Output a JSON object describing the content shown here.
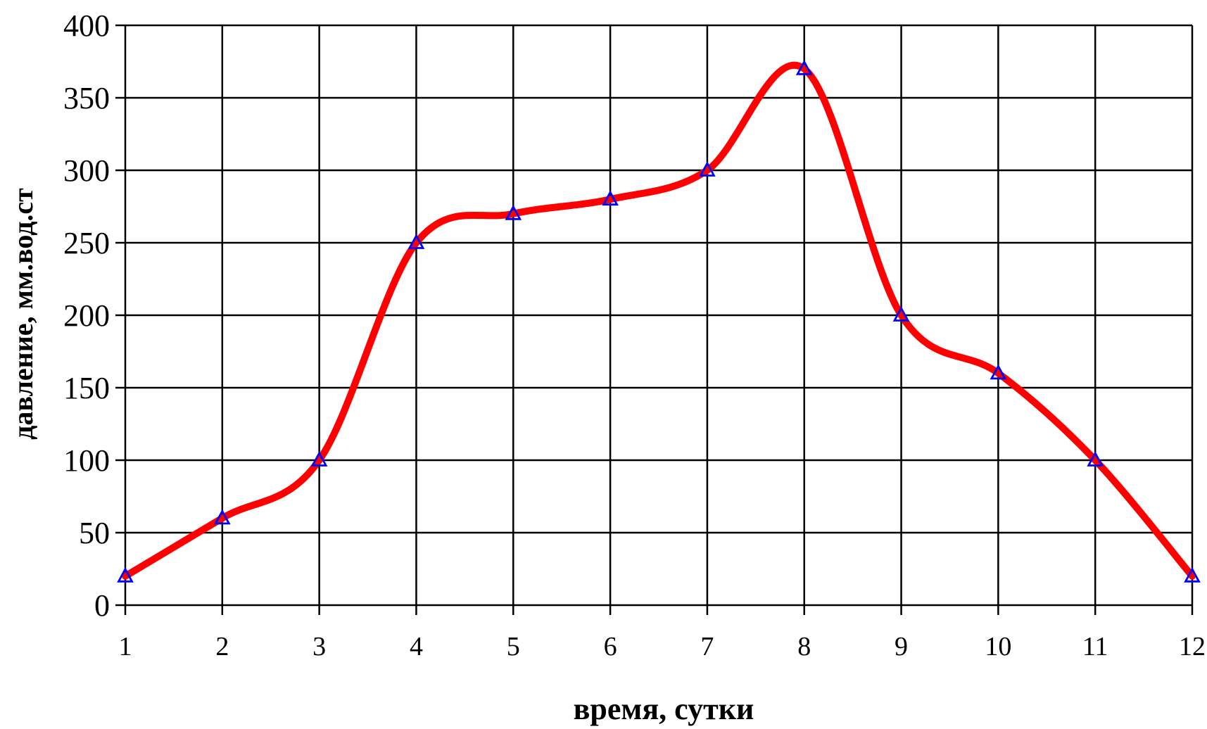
{
  "chart_data": {
    "type": "line",
    "title": "",
    "xlabel": "время, сутки",
    "ylabel": "давление, мм.вод.ст",
    "xlim": [
      1,
      12
    ],
    "ylim": [
      0,
      400
    ],
    "x_ticks": [
      1,
      2,
      3,
      4,
      5,
      6,
      7,
      8,
      9,
      10,
      11,
      12
    ],
    "y_ticks": [
      0,
      50,
      100,
      150,
      200,
      250,
      300,
      350,
      400
    ],
    "grid": true,
    "legend": "none",
    "series": [
      {
        "name": "",
        "color": "#ff0000",
        "marker": "triangle",
        "marker_color": "#0000ff",
        "x": [
          1,
          2,
          3,
          4,
          5,
          6,
          7,
          8,
          9,
          10,
          11,
          12
        ],
        "values": [
          20,
          60,
          100,
          250,
          270,
          280,
          300,
          370,
          200,
          160,
          100,
          20
        ]
      }
    ]
  }
}
